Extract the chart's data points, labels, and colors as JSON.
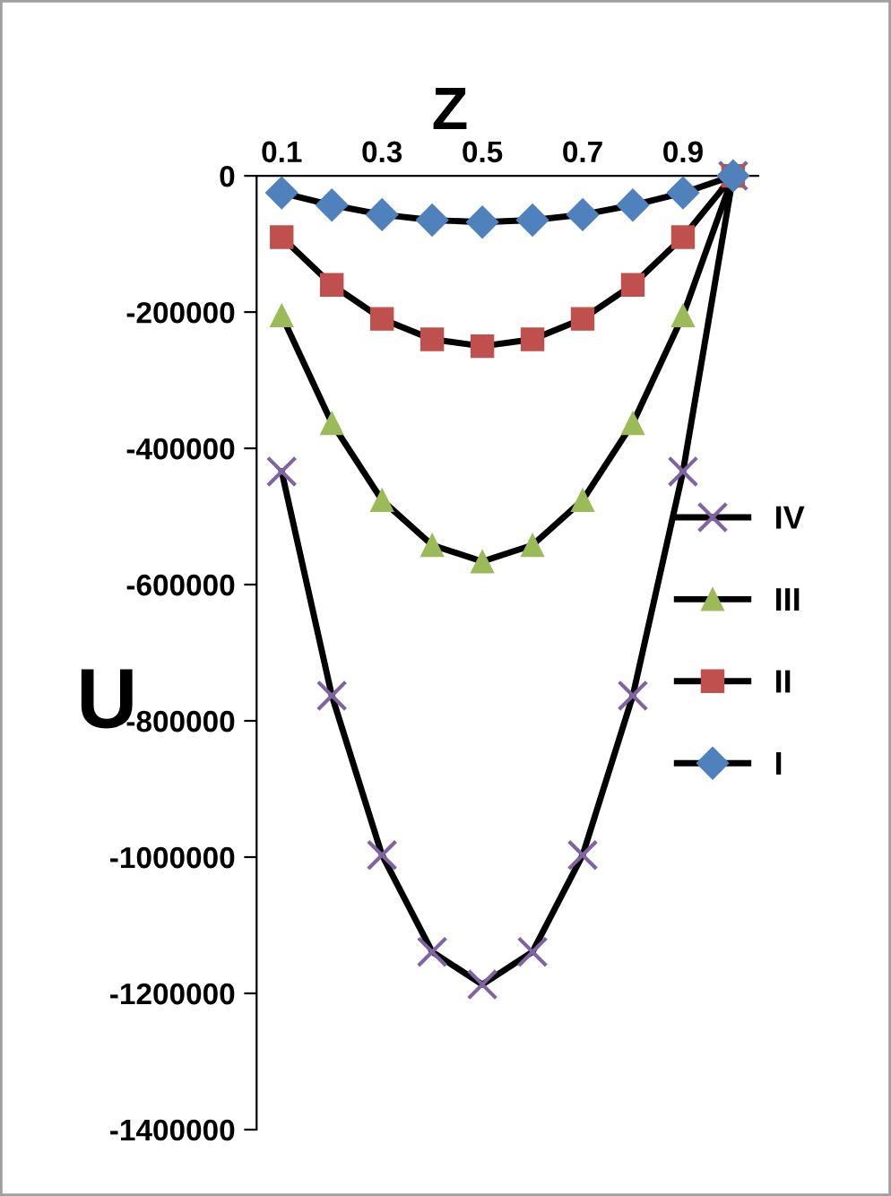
{
  "chart_data": {
    "type": "line",
    "title": "Z",
    "ylabel": "U",
    "categories": [
      "0.1",
      null,
      "0.3",
      null,
      "0.5",
      null,
      "0.7",
      null,
      "0.9",
      null
    ],
    "series": [
      {
        "name": "IV",
        "color": "#8064a2",
        "marker": "cross",
        "values": [
          -434000,
          -763000,
          -997000,
          -1139000,
          -1187000,
          -1139000,
          -997000,
          -763000,
          -434000,
          0
        ]
      },
      {
        "name": "III",
        "color": "#9bbb59",
        "marker": "triangle",
        "values": [
          -205000,
          -363000,
          -476000,
          -542000,
          -566000,
          -542000,
          -476000,
          -363000,
          -205000,
          0
        ]
      },
      {
        "name": "II",
        "color": "#c0504d",
        "marker": "square",
        "values": [
          -90000,
          -160000,
          -210000,
          -240000,
          -250000,
          -240000,
          -210000,
          -160000,
          -90000,
          0
        ]
      },
      {
        "name": "I",
        "color": "#4f81bd",
        "marker": "diamond",
        "values": [
          -25000,
          -43000,
          -57000,
          -65000,
          -68000,
          -65000,
          -57000,
          -43000,
          -25000,
          0
        ]
      }
    ],
    "ylim": [
      -1400000,
      0
    ],
    "yticks": [
      -1400000,
      -1200000,
      -1000000,
      -800000,
      -600000,
      -400000,
      -200000,
      0
    ],
    "grid": false,
    "legend": "right",
    "line_style": "solid"
  }
}
